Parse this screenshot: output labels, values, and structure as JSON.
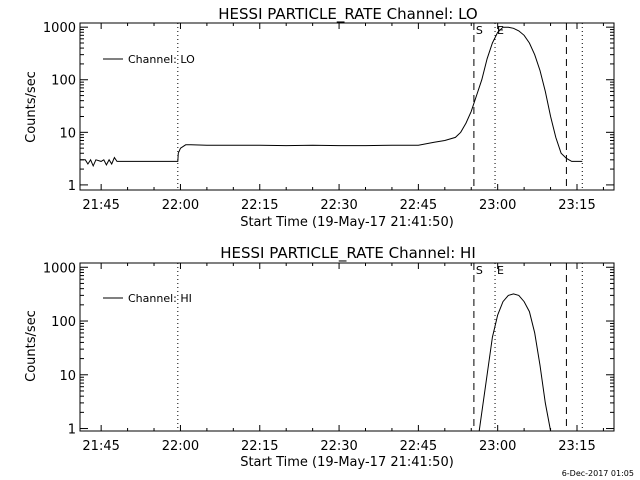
{
  "chart_data": [
    {
      "type": "line",
      "title": "HESSI PARTICLE_RATE Channel: LO",
      "ylabel": "Counts/sec",
      "xlabel": "Start Time (19-May-17 21:41:50)",
      "y_scale": "log",
      "ylim": [
        0.8,
        1200
      ],
      "y_ticks": [
        {
          "value": 1,
          "label": "1"
        },
        {
          "value": 10,
          "label": "10"
        },
        {
          "value": 100,
          "label": "100"
        },
        {
          "value": 1000,
          "label": "1000"
        }
      ],
      "xlim": [
        "21:41",
        "23:22"
      ],
      "x_ticks": [
        "21:45",
        "22:00",
        "22:15",
        "22:30",
        "22:45",
        "23:00",
        "23:15"
      ],
      "legend": {
        "label": "Channel: LO",
        "placement": "top-left"
      },
      "markers": [
        {
          "time": "21:59.5",
          "style": "dotted",
          "label": ""
        },
        {
          "time": "22:55.5",
          "style": "dashed",
          "label": "S"
        },
        {
          "time": "22:59.5",
          "style": "dotted",
          "label": "E"
        },
        {
          "time": "23:13",
          "style": "dashed",
          "label": ""
        },
        {
          "time": "23:16",
          "style": "dotted",
          "label": ""
        }
      ],
      "series": [
        {
          "x": [
            "21:41",
            "21:42",
            "21:42.5",
            "21:43",
            "21:43.5",
            "21:44",
            "21:45",
            "21:45.5",
            "21:46",
            "21:46.5",
            "21:47",
            "21:47.5",
            "21:48",
            "21:49",
            "21:50",
            "21:55",
            "21:59.5",
            "21:59.6",
            "22:00",
            "22:01",
            "22:02",
            "22:05",
            "22:10",
            "22:15",
            "22:20",
            "22:25",
            "22:30",
            "22:35",
            "22:40",
            "22:45",
            "22:48",
            "22:50",
            "22:52",
            "22:53",
            "22:54",
            "22:55",
            "22:56",
            "22:57",
            "22:58",
            "22:59",
            "23:00",
            "23:01",
            "23:02",
            "23:03",
            "23:04",
            "23:05",
            "23:06",
            "23:07",
            "23:08",
            "23:09",
            "23:10",
            "23:11",
            "23:12",
            "23:13",
            "23:14",
            "23:15",
            "23:16"
          ],
          "y": [
            3,
            3,
            2.5,
            3,
            2.3,
            3,
            2.8,
            3,
            2.4,
            3,
            2.5,
            3.3,
            2.8,
            2.8,
            2.8,
            2.8,
            2.8,
            4,
            5,
            5.8,
            5.8,
            5.7,
            5.7,
            5.7,
            5.6,
            5.7,
            5.6,
            5.6,
            5.7,
            5.7,
            6.5,
            7,
            8,
            10,
            15,
            25,
            50,
            100,
            250,
            500,
            800,
            1000,
            1000,
            950,
            850,
            700,
            500,
            300,
            150,
            60,
            20,
            8,
            4,
            3.2,
            2.8,
            2.8,
            2.8
          ]
        }
      ]
    },
    {
      "type": "line",
      "title": "HESSI PARTICLE_RATE Channel: HI",
      "ylabel": "Counts/sec",
      "xlabel": "Start Time (19-May-17 21:41:50)",
      "y_scale": "log",
      "ylim": [
        0.9,
        1200
      ],
      "y_ticks": [
        {
          "value": 1,
          "label": "1"
        },
        {
          "value": 10,
          "label": "10"
        },
        {
          "value": 100,
          "label": "100"
        },
        {
          "value": 1000,
          "label": "1000"
        }
      ],
      "xlim": [
        "21:41",
        "23:22"
      ],
      "x_ticks": [
        "21:45",
        "22:00",
        "22:15",
        "22:30",
        "22:45",
        "23:00",
        "23:15"
      ],
      "legend": {
        "label": "Channel: HI",
        "placement": "top-left"
      },
      "markers": [
        {
          "time": "21:59.5",
          "style": "dotted",
          "label": ""
        },
        {
          "time": "22:55.5",
          "style": "dashed",
          "label": "S"
        },
        {
          "time": "22:59.5",
          "style": "dotted",
          "label": "E"
        },
        {
          "time": "23:13",
          "style": "dashed",
          "label": ""
        },
        {
          "time": "23:16",
          "style": "dotted",
          "label": ""
        }
      ],
      "series": [
        {
          "x": [
            "22:56.5",
            "22:57",
            "22:58",
            "22:59",
            "23:00",
            "23:01",
            "23:02",
            "23:03",
            "23:04",
            "23:05",
            "23:06",
            "23:07",
            "23:08",
            "23:09",
            "23:10"
          ],
          "y": [
            0.9,
            2,
            10,
            50,
            130,
            230,
            300,
            320,
            300,
            230,
            150,
            60,
            15,
            3,
            0.9
          ]
        }
      ]
    }
  ],
  "footer": {
    "timestamp": "6-Dec-2017 01:05"
  }
}
